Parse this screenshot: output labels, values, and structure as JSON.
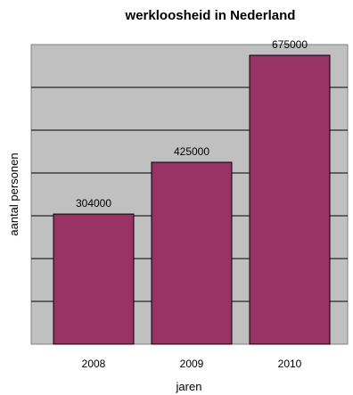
{
  "chart_data": {
    "type": "bar",
    "title": "werkloosheid in Nederland",
    "xlabel": "jaren",
    "ylabel": "aantal personen",
    "categories": [
      "2008",
      "2009",
      "2010"
    ],
    "values": [
      304000,
      425000,
      675000
    ],
    "data_labels": [
      "304000",
      "425000",
      "675000"
    ],
    "ylim": [
      0,
      700000
    ],
    "grid": true,
    "legend": "none",
    "colors": {
      "bar": "#993366",
      "plot_background": "#c0c0c0",
      "gridline": "#000000"
    }
  }
}
